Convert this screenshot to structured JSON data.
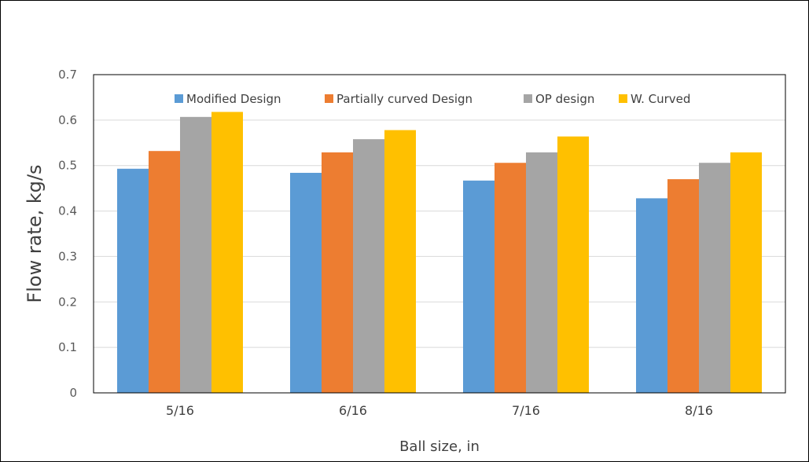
{
  "chart_data": {
    "type": "bar",
    "title": "",
    "xlabel": "Ball size, in",
    "ylabel": "Flow rate, kg/s",
    "ylim": [
      0,
      0.7
    ],
    "yticks": [
      "0",
      "0.1",
      "0.2",
      "0.3",
      "0.4",
      "0.5",
      "0.6",
      "0.7"
    ],
    "grid": true,
    "legend_position": "top-inside",
    "categories": [
      "5/16",
      "6/16",
      "7/16",
      "8/16"
    ],
    "series": [
      {
        "name": "Modified Design",
        "color": "#5B9BD5",
        "values": [
          0.493,
          0.484,
          0.467,
          0.428
        ]
      },
      {
        "name": "Partially curved Design",
        "color": "#ED7D31",
        "values": [
          0.532,
          0.529,
          0.506,
          0.47
        ]
      },
      {
        "name": "OP design",
        "color": "#A5A5A5",
        "values": [
          0.607,
          0.558,
          0.529,
          0.506
        ]
      },
      {
        "name": "W. Curved",
        "color": "#FFC000",
        "values": [
          0.618,
          0.578,
          0.564,
          0.529
        ]
      }
    ]
  }
}
